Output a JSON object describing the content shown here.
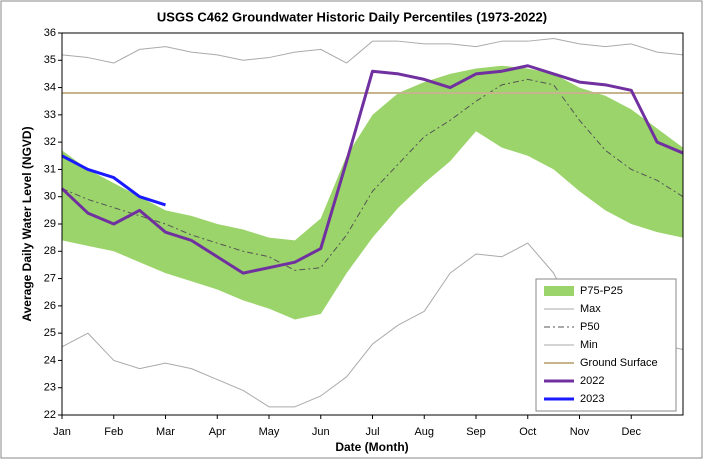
{
  "chart_data": {
    "type": "line",
    "title": "USGS C462 Groundwater Historic Daily Percentiles (1973-2022)",
    "xlabel": "Date (Month)",
    "ylabel": "Average Daily Water Level (NGVD)",
    "categories": [
      "Jan",
      null,
      "Feb",
      null,
      "Mar",
      null,
      "Apr",
      null,
      "May",
      null,
      "Jun",
      null,
      "Jul",
      null,
      "Aug",
      null,
      "Sep",
      null,
      "Oct",
      null,
      "Nov",
      null,
      "Dec",
      null,
      null
    ],
    "ylim": [
      22,
      36
    ],
    "yticks": [
      22,
      23,
      24,
      25,
      26,
      27,
      28,
      29,
      30,
      31,
      32,
      33,
      34,
      35,
      36
    ],
    "legend": "lower right",
    "series": [
      {
        "name": "P75-P25",
        "color": "#9bd46a",
        "kind": "band",
        "upper": [
          31.7,
          31.0,
          30.5,
          30.0,
          29.5,
          29.3,
          29.0,
          28.8,
          28.5,
          28.4,
          29.2,
          31.5,
          33.0,
          33.8,
          34.2,
          34.5,
          34.7,
          34.8,
          34.7,
          34.5,
          34.0,
          33.7,
          33.2,
          32.5,
          31.8
        ],
        "lower": [
          28.4,
          28.2,
          28.0,
          27.6,
          27.2,
          26.9,
          26.6,
          26.2,
          25.9,
          25.5,
          25.7,
          27.2,
          28.5,
          29.6,
          30.5,
          31.3,
          32.4,
          31.8,
          31.5,
          31.0,
          30.2,
          29.5,
          29.0,
          28.7,
          28.5
        ]
      },
      {
        "name": "Max",
        "color": "#aaaaaa",
        "width": 1,
        "values": [
          35.2,
          35.1,
          34.9,
          35.4,
          35.5,
          35.3,
          35.2,
          35.0,
          35.1,
          35.3,
          35.4,
          34.9,
          35.7,
          35.7,
          35.6,
          35.6,
          35.5,
          35.7,
          35.7,
          35.8,
          35.6,
          35.5,
          35.6,
          35.3,
          35.2
        ]
      },
      {
        "name": "P50",
        "color": "#555555",
        "width": 1,
        "dash": "dash-dot",
        "values": [
          30.3,
          29.9,
          29.6,
          29.3,
          29.0,
          28.6,
          28.3,
          28.0,
          27.8,
          27.3,
          27.4,
          28.6,
          30.2,
          31.2,
          32.2,
          32.8,
          33.5,
          34.1,
          34.3,
          34.1,
          32.8,
          31.7,
          31.0,
          30.6,
          30.0
        ]
      },
      {
        "name": "Min",
        "color": "#aaaaaa",
        "width": 1,
        "values": [
          24.5,
          25.0,
          24.0,
          23.7,
          23.9,
          23.7,
          23.3,
          22.9,
          22.3,
          22.3,
          22.7,
          23.4,
          24.6,
          25.3,
          25.8,
          27.2,
          27.9,
          27.8,
          28.3,
          27.2,
          25.3,
          24.4,
          24.2,
          24.6,
          24.4
        ]
      },
      {
        "name": "Ground Surface",
        "color": "#c8b48c",
        "width": 2,
        "kind": "level",
        "value": 33.8
      },
      {
        "name": "2022",
        "color": "#7030a0",
        "width": 3,
        "values": [
          30.3,
          29.4,
          29.0,
          29.5,
          28.7,
          28.4,
          27.8,
          27.2,
          27.4,
          27.6,
          28.1,
          31.3,
          34.6,
          34.5,
          34.3,
          34.0,
          34.5,
          34.6,
          34.8,
          34.5,
          34.2,
          34.1,
          33.9,
          32.0,
          31.6
        ]
      },
      {
        "name": "2023",
        "color": "#1a1aff",
        "width": 3,
        "values": [
          31.5,
          31.0,
          30.7,
          30.0,
          29.7,
          null,
          null,
          null,
          null,
          null,
          null,
          null,
          null,
          null,
          null,
          null,
          null,
          null,
          null,
          null,
          null,
          null,
          null,
          null,
          null
        ]
      }
    ]
  }
}
